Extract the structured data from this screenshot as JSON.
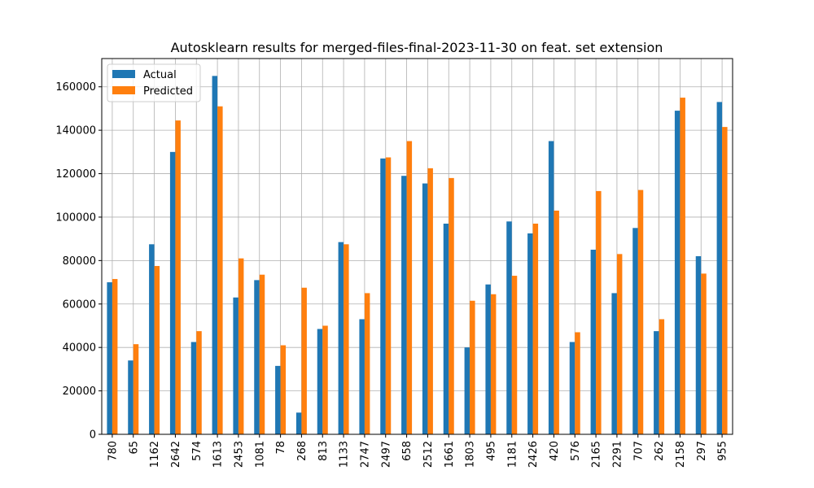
{
  "chart_data": {
    "type": "bar",
    "title": "Autosklearn results for merged-files-final-2023-11-30 on feat. set extension",
    "xlabel": "",
    "ylabel": "",
    "ylim": [
      0,
      173000
    ],
    "yticks": [
      0,
      20000,
      40000,
      60000,
      80000,
      100000,
      120000,
      140000,
      160000
    ],
    "grid": true,
    "legend_position": "top-left",
    "categories": [
      "780",
      "65",
      "1162",
      "2642",
      "574",
      "1613",
      "2453",
      "1081",
      "78",
      "268",
      "813",
      "1133",
      "2747",
      "2497",
      "658",
      "2512",
      "1661",
      "1803",
      "495",
      "1181",
      "2426",
      "420",
      "576",
      "2165",
      "2291",
      "707",
      "262",
      "2158",
      "297",
      "955"
    ],
    "series": [
      {
        "name": "Actual",
        "color": "#1f77b4",
        "values": [
          70000,
          34000,
          87500,
          130000,
          42500,
          165000,
          63000,
          71000,
          31500,
          10000,
          48500,
          88500,
          53000,
          127000,
          119000,
          115500,
          97000,
          40000,
          69000,
          98000,
          92500,
          135000,
          42500,
          85000,
          65000,
          95000,
          47500,
          149000,
          82000,
          153000
        ]
      },
      {
        "name": "Predicted",
        "color": "#ff7f0e",
        "values": [
          71500,
          41500,
          77500,
          144500,
          47500,
          151000,
          81000,
          73500,
          41000,
          67500,
          50000,
          87500,
          65000,
          127500,
          135000,
          122500,
          118000,
          61500,
          64500,
          73000,
          97000,
          103000,
          47000,
          112000,
          83000,
          112500,
          53000,
          155000,
          74000,
          141500
        ]
      }
    ]
  }
}
